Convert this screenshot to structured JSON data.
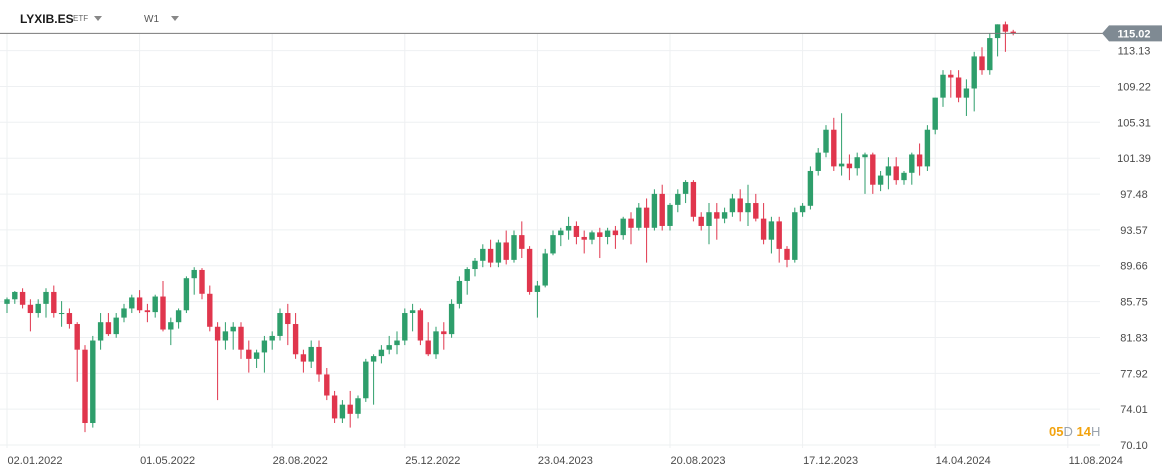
{
  "header": {
    "symbol": "LYXIB.ES",
    "symbol_type": "ETF",
    "interval": "W1"
  },
  "countdown": {
    "days": "05",
    "days_unit": "D",
    "hours": "14",
    "hours_unit": "H"
  },
  "colors": {
    "up": "#2e9e6b",
    "down": "#e0364d",
    "current_price_line": "#7a7a7a",
    "current_price_badge": "#7f8a93",
    "grid": "#eef0f2",
    "countdown": "#f2a30f"
  },
  "chart_data": {
    "type": "candlestick",
    "title": "",
    "xlabel": "",
    "ylabel": "",
    "current_price": 115.02,
    "current_price_label": "115.02",
    "ylim": [
      70.1,
      115.6
    ],
    "y_ticks": [
      "113.13",
      "109.22",
      "105.31",
      "101.39",
      "97.48",
      "93.57",
      "89.66",
      "85.75",
      "81.83",
      "77.92",
      "74.01",
      "70.10"
    ],
    "y_tick_values": [
      113.13,
      109.22,
      105.31,
      101.39,
      97.48,
      93.57,
      89.66,
      85.75,
      81.83,
      77.92,
      74.01,
      70.1
    ],
    "x_ticks": [
      "02.01.2022",
      "01.05.2022",
      "28.08.2022",
      "25.12.2022",
      "23.04.2023",
      "20.08.2023",
      "17.12.2023",
      "14.04.2024",
      "11.08.2024"
    ],
    "x_tick_bars": [
      0,
      17,
      34,
      51,
      68,
      85,
      102,
      119,
      136
    ],
    "grid": true,
    "candles": [
      [
        85.5,
        86.2,
        84.5,
        86.0
      ],
      [
        86.0,
        86.9,
        85.5,
        86.8
      ],
      [
        86.8,
        87.2,
        85.0,
        85.4
      ],
      [
        85.4,
        86.0,
        82.5,
        84.5
      ],
      [
        84.5,
        86.0,
        84.0,
        85.5
      ],
      [
        85.5,
        87.2,
        84.0,
        86.8
      ],
      [
        86.8,
        87.5,
        84.0,
        84.5
      ],
      [
        84.5,
        85.8,
        83.0,
        84.5
      ],
      [
        84.5,
        85.0,
        82.8,
        83.3
      ],
      [
        83.3,
        83.5,
        77.0,
        80.5
      ],
      [
        80.5,
        81.0,
        71.5,
        72.5
      ],
      [
        72.5,
        82.0,
        72.0,
        81.5
      ],
      [
        81.5,
        84.5,
        80.5,
        83.5
      ],
      [
        83.5,
        84.5,
        82.0,
        82.2
      ],
      [
        82.2,
        84.5,
        81.8,
        84.0
      ],
      [
        84.0,
        85.5,
        83.5,
        85.0
      ],
      [
        85.0,
        86.5,
        84.5,
        86.2
      ],
      [
        86.2,
        87.0,
        84.5,
        84.8
      ],
      [
        84.8,
        85.5,
        83.5,
        84.6
      ],
      [
        84.6,
        86.5,
        84.0,
        86.3
      ],
      [
        86.3,
        88.0,
        82.5,
        82.7
      ],
      [
        82.7,
        84.0,
        81.0,
        83.5
      ],
      [
        83.5,
        85.0,
        82.8,
        84.8
      ],
      [
        84.8,
        88.5,
        84.5,
        88.3
      ],
      [
        88.3,
        89.5,
        86.5,
        89.2
      ],
      [
        89.2,
        89.4,
        86.0,
        86.6
      ],
      [
        86.6,
        87.5,
        82.5,
        83.0
      ],
      [
        83.0,
        83.5,
        75.0,
        81.5
      ],
      [
        81.5,
        83.5,
        80.5,
        82.5
      ],
      [
        82.5,
        83.5,
        80.5,
        83.0
      ],
      [
        83.0,
        83.5,
        79.5,
        80.5
      ],
      [
        80.5,
        81.5,
        78.0,
        79.5
      ],
      [
        79.5,
        80.5,
        78.5,
        80.2
      ],
      [
        80.2,
        82.0,
        78.0,
        81.5
      ],
      [
        81.5,
        82.5,
        80.5,
        82.0
      ],
      [
        82.0,
        85.0,
        81.5,
        84.5
      ],
      [
        84.5,
        85.5,
        81.0,
        83.3
      ],
      [
        83.3,
        84.5,
        79.5,
        80.0
      ],
      [
        80.0,
        80.5,
        78.0,
        79.2
      ],
      [
        79.2,
        81.5,
        78.5,
        80.8
      ],
      [
        80.8,
        81.5,
        77.0,
        77.8
      ],
      [
        77.8,
        78.5,
        75.0,
        75.5
      ],
      [
        75.5,
        76.0,
        72.5,
        73.0
      ],
      [
        73.0,
        75.0,
        72.5,
        74.5
      ],
      [
        74.5,
        76.0,
        72.0,
        73.5
      ],
      [
        73.5,
        75.5,
        73.0,
        75.2
      ],
      [
        75.2,
        79.5,
        74.8,
        79.2
      ],
      [
        79.2,
        80.0,
        74.5,
        79.8
      ],
      [
        79.8,
        81.0,
        79.0,
        80.5
      ],
      [
        80.5,
        82.0,
        80.0,
        81.0
      ],
      [
        81.0,
        82.5,
        80.0,
        81.5
      ],
      [
        81.5,
        85.0,
        81.0,
        84.5
      ],
      [
        84.5,
        85.5,
        82.5,
        84.8
      ],
      [
        84.8,
        85.0,
        81.0,
        81.5
      ],
      [
        81.5,
        83.5,
        79.8,
        80.0
      ],
      [
        80.0,
        83.0,
        79.5,
        82.5
      ],
      [
        82.5,
        83.5,
        80.5,
        82.2
      ],
      [
        82.2,
        86.0,
        81.8,
        85.5
      ],
      [
        85.5,
        88.5,
        85.0,
        88.0
      ],
      [
        88.0,
        89.5,
        86.5,
        89.3
      ],
      [
        89.3,
        90.5,
        88.5,
        90.2
      ],
      [
        90.2,
        92.0,
        89.5,
        91.5
      ],
      [
        91.5,
        92.5,
        89.5,
        90.0
      ],
      [
        90.0,
        92.5,
        89.5,
        92.2
      ],
      [
        92.2,
        93.5,
        89.8,
        90.3
      ],
      [
        90.3,
        93.5,
        90.0,
        93.0
      ],
      [
        93.0,
        94.5,
        90.5,
        91.5
      ],
      [
        91.5,
        91.8,
        86.5,
        86.8
      ],
      [
        86.8,
        88.0,
        84.0,
        87.5
      ],
      [
        87.5,
        91.5,
        87.3,
        91.0
      ],
      [
        91.0,
        93.5,
        90.8,
        93.0
      ],
      [
        93.0,
        93.8,
        91.8,
        93.5
      ],
      [
        93.5,
        95.0,
        92.5,
        94.0
      ],
      [
        94.0,
        94.5,
        92.0,
        92.8
      ],
      [
        92.8,
        93.5,
        91.0,
        92.5
      ],
      [
        92.5,
        93.5,
        92.0,
        93.3
      ],
      [
        93.3,
        93.8,
        90.5,
        92.8
      ],
      [
        92.8,
        93.8,
        92.0,
        93.5
      ],
      [
        93.5,
        94.0,
        91.5,
        93.0
      ],
      [
        93.0,
        95.0,
        92.5,
        94.8
      ],
      [
        94.8,
        95.5,
        92.0,
        93.8
      ],
      [
        93.8,
        96.5,
        93.5,
        96.0
      ],
      [
        96.0,
        97.0,
        90.0,
        93.8
      ],
      [
        93.8,
        98.0,
        93.5,
        97.5
      ],
      [
        97.5,
        98.5,
        93.5,
        94.0
      ],
      [
        94.0,
        96.5,
        93.5,
        96.3
      ],
      [
        96.3,
        98.0,
        95.5,
        97.5
      ],
      [
        97.5,
        99.0,
        96.5,
        98.8
      ],
      [
        98.8,
        99.0,
        94.5,
        95.0
      ],
      [
        95.0,
        95.5,
        93.5,
        94.0
      ],
      [
        94.0,
        96.5,
        92.0,
        95.5
      ],
      [
        95.5,
        96.5,
        92.5,
        94.8
      ],
      [
        94.8,
        96.0,
        94.3,
        95.5
      ],
      [
        95.5,
        97.5,
        95.0,
        97.0
      ],
      [
        97.0,
        98.0,
        94.5,
        95.5
      ],
      [
        95.5,
        98.5,
        94.0,
        96.5
      ],
      [
        96.5,
        97.5,
        94.5,
        94.8
      ],
      [
        94.8,
        96.5,
        92.0,
        92.5
      ],
      [
        92.5,
        95.0,
        91.0,
        94.5
      ],
      [
        94.5,
        95.0,
        90.0,
        91.5
      ],
      [
        91.5,
        91.8,
        89.5,
        90.3
      ],
      [
        90.3,
        96.0,
        90.0,
        95.5
      ],
      [
        95.5,
        96.5,
        95.0,
        96.2
      ],
      [
        96.2,
        100.5,
        95.8,
        100.0
      ],
      [
        100.0,
        102.5,
        99.5,
        102.0
      ],
      [
        102.0,
        105.0,
        101.5,
        104.5
      ],
      [
        104.5,
        105.8,
        100.0,
        100.5
      ],
      [
        100.5,
        106.3,
        99.5,
        100.8
      ],
      [
        100.8,
        101.8,
        99.0,
        100.3
      ],
      [
        100.3,
        102.0,
        99.5,
        101.5
      ],
      [
        101.5,
        102.0,
        97.5,
        101.8
      ],
      [
        101.8,
        102.0,
        97.5,
        98.5
      ],
      [
        98.5,
        100.0,
        97.8,
        99.5
      ],
      [
        99.5,
        101.5,
        98.0,
        100.5
      ],
      [
        100.5,
        101.5,
        98.5,
        99.0
      ],
      [
        99.0,
        100.0,
        98.5,
        99.8
      ],
      [
        99.8,
        102.0,
        98.5,
        101.8
      ],
      [
        101.8,
        103.0,
        99.5,
        100.5
      ],
      [
        100.5,
        105.0,
        100.0,
        104.5
      ],
      [
        104.5,
        108.0,
        104.0,
        108.0
      ],
      [
        108.0,
        111.0,
        107.0,
        110.5
      ],
      [
        110.5,
        111.0,
        108.0,
        110.2
      ],
      [
        110.2,
        111.0,
        107.5,
        108.0
      ],
      [
        108.0,
        110.0,
        106.0,
        109.0
      ],
      [
        109.0,
        113.0,
        106.5,
        112.5
      ],
      [
        112.5,
        113.5,
        110.5,
        111.0
      ],
      [
        111.0,
        115.0,
        110.5,
        114.5
      ],
      [
        114.5,
        116.0,
        112.5,
        116.0
      ],
      [
        116.0,
        116.3,
        113.0,
        115.2
      ],
      [
        115.2,
        115.4,
        114.8,
        115.02
      ]
    ]
  }
}
